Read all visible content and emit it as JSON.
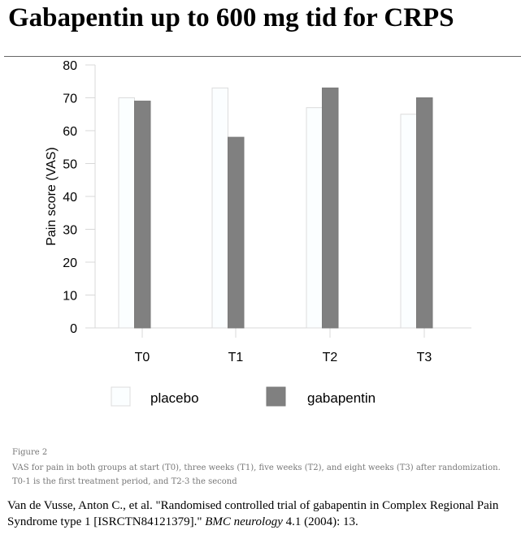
{
  "title": "Gabapentin up to 600 mg tid for CRPS",
  "chart_data": {
    "type": "bar",
    "categories": [
      "T0",
      "T1",
      "T2",
      "T3"
    ],
    "series": [
      {
        "name": "placebo",
        "values": [
          70,
          73,
          67,
          65
        ],
        "color": "#fbfeff"
      },
      {
        "name": "gabapentin",
        "values": [
          69,
          58,
          73,
          70
        ],
        "color": "#808080"
      }
    ],
    "xlabel": "",
    "ylabel": "Pain score (VAS)",
    "ylim": [
      0,
      80
    ],
    "yticks": [
      0,
      10,
      20,
      30,
      40,
      50,
      60,
      70,
      80
    ],
    "grid": false,
    "legend": "bottom"
  },
  "caption": {
    "label": "Figure 2",
    "text": "VAS for pain in both groups at start (T0), three weeks (T1), five weeks (T2), and eight weeks (T3) after randomization. T0-1 is the first treatment period, and T2-3 the second"
  },
  "citation": {
    "before": "Van de Vusse, Anton C., et al. \"Randomised controlled trial of gabapentin in Complex Regional Pain Syndrome type 1 [ISRCTN84121379].\" ",
    "journal": "BMC neurology",
    "after": " 4.1 (2004): 13."
  }
}
